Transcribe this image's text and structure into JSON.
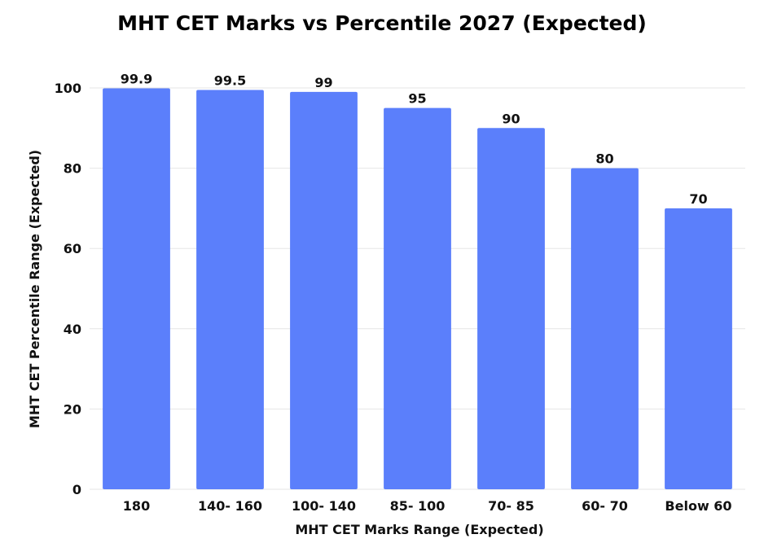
{
  "chart_data": {
    "type": "bar",
    "title": "MHT CET Marks vs Percentile 2027 (Expected)",
    "xlabel": "MHT CET Marks Range (Expected)",
    "ylabel": "MHT CET Percentile Range (Expected)",
    "categories": [
      "180",
      "140- 160",
      "100- 140",
      "85- 100",
      "70- 85",
      "60- 70",
      "Below 60"
    ],
    "values": [
      99.9,
      99.5,
      99,
      95,
      90,
      80,
      70
    ],
    "data_labels": [
      "99.9",
      "99.5",
      "99",
      "95",
      "90",
      "80",
      "70"
    ],
    "ylim": [
      0,
      100
    ],
    "yticks": [
      0,
      20,
      40,
      60,
      80,
      100
    ],
    "grid": true,
    "legend": "none",
    "bar_color": "#5b7ffb",
    "grid_color": "#e6e6e6"
  }
}
